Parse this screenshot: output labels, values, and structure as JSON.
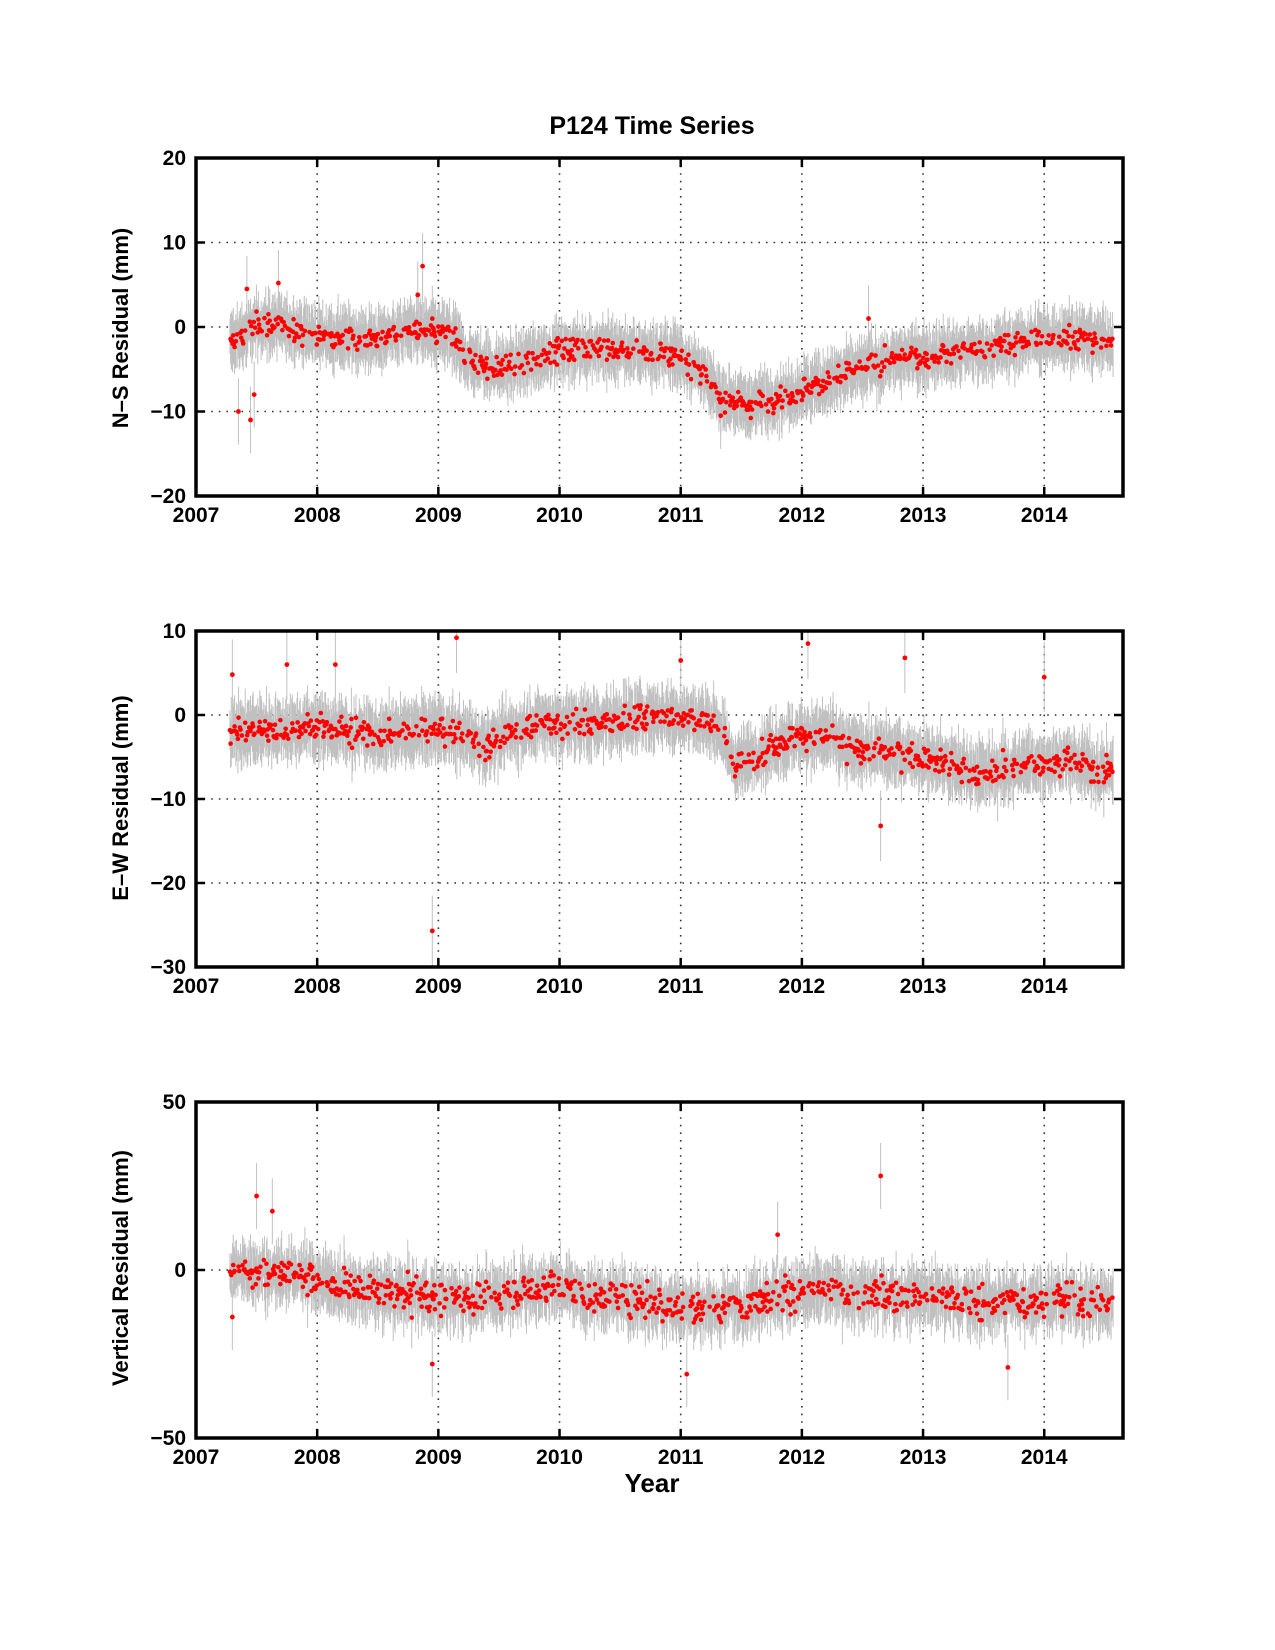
{
  "chart_data": [
    {
      "type": "scatter",
      "title": "P124 Time Series",
      "ylabel": "N–S Residual (mm)",
      "xlabel": "",
      "xlim": [
        2007,
        2014.65
      ],
      "ylim": [
        -20,
        20
      ],
      "xticks": [
        2007,
        2008,
        2009,
        2010,
        2011,
        2012,
        2013,
        2014
      ],
      "xtick_labels": [
        "2007",
        "2008",
        "2009",
        "2010",
        "2011",
        "2012",
        "2013",
        "2014"
      ],
      "yticks": [
        -20,
        -10,
        0,
        10,
        20
      ],
      "ytick_labels": [
        "−20",
        "−10",
        "0",
        "10",
        "20"
      ],
      "grid": "dotted",
      "data_start": 2007.28,
      "data_end": 2014.57,
      "markers": "red dots with gray error bars",
      "colors": {
        "points": "#ff0000",
        "error_bars": "#c0c0c0"
      },
      "error_bar_mm": 2.8,
      "noise_mm": 1.3,
      "trend": [
        [
          2007.28,
          -2
        ],
        [
          2007.55,
          0.5
        ],
        [
          2007.75,
          0
        ],
        [
          2008.0,
          -1
        ],
        [
          2008.5,
          -1.5
        ],
        [
          2008.75,
          -0.3
        ],
        [
          2009.1,
          -1
        ],
        [
          2009.25,
          -4
        ],
        [
          2009.5,
          -5
        ],
        [
          2009.75,
          -3.8
        ],
        [
          2010.0,
          -2.8
        ],
        [
          2010.3,
          -2.5
        ],
        [
          2010.6,
          -3
        ],
        [
          2010.95,
          -3.2
        ],
        [
          2011.15,
          -5
        ],
        [
          2011.3,
          -8
        ],
        [
          2011.5,
          -9.3
        ],
        [
          2011.8,
          -8.5
        ],
        [
          2012.0,
          -7.5
        ],
        [
          2012.3,
          -6
        ],
        [
          2012.6,
          -4.5
        ],
        [
          2012.9,
          -3.5
        ],
        [
          2013.3,
          -3
        ],
        [
          2013.6,
          -2.5
        ],
        [
          2013.9,
          -1.5
        ],
        [
          2014.2,
          -1
        ],
        [
          2014.4,
          -1.5
        ],
        [
          2014.57,
          -1.8
        ]
      ],
      "outliers": [
        [
          2007.35,
          -10
        ],
        [
          2007.45,
          -11
        ],
        [
          2007.48,
          -8
        ],
        [
          2007.42,
          4.5
        ],
        [
          2007.68,
          5.2
        ],
        [
          2008.87,
          7.2
        ],
        [
          2008.83,
          3.8
        ],
        [
          2012.55,
          1
        ],
        [
          2011.33,
          -10.5
        ]
      ]
    },
    {
      "type": "scatter",
      "title": "",
      "ylabel": "E–W Residual (mm)",
      "xlabel": "",
      "xlim": [
        2007,
        2014.65
      ],
      "ylim": [
        -30,
        10
      ],
      "xticks": [
        2007,
        2008,
        2009,
        2010,
        2011,
        2012,
        2013,
        2014
      ],
      "xtick_labels": [
        "2007",
        "2008",
        "2009",
        "2010",
        "2011",
        "2012",
        "2013",
        "2014"
      ],
      "yticks": [
        -30,
        -20,
        -10,
        0,
        10
      ],
      "ytick_labels": [
        "−30",
        "−20",
        "−10",
        "0",
        "10"
      ],
      "grid": "dotted",
      "data_start": 2007.28,
      "data_end": 2014.57,
      "markers": "red dots with gray error bars",
      "colors": {
        "points": "#ff0000",
        "error_bars": "#c0c0c0"
      },
      "error_bar_mm": 3,
      "noise_mm": 1.5,
      "trend": [
        [
          2007.28,
          -2
        ],
        [
          2008.0,
          -1.5
        ],
        [
          2008.5,
          -2.5
        ],
        [
          2009.0,
          -1.5
        ],
        [
          2009.4,
          -3.5
        ],
        [
          2009.8,
          -1
        ],
        [
          2010.3,
          -1
        ],
        [
          2010.8,
          0
        ],
        [
          2011.1,
          -0.5
        ],
        [
          2011.3,
          -1
        ],
        [
          2011.45,
          -6
        ],
        [
          2011.7,
          -4
        ],
        [
          2012.0,
          -2.5
        ],
        [
          2012.25,
          -2.5
        ],
        [
          2012.35,
          -4
        ],
        [
          2012.8,
          -4.5
        ],
        [
          2013.2,
          -6
        ],
        [
          2013.5,
          -7
        ],
        [
          2013.8,
          -6
        ],
        [
          2014.2,
          -5.5
        ],
        [
          2014.57,
          -7
        ]
      ],
      "outliers": [
        [
          2008.95,
          -25.7
        ],
        [
          2009.15,
          9.2
        ],
        [
          2012.05,
          8.5
        ],
        [
          2012.65,
          -13.2
        ],
        [
          2012.85,
          6.8
        ],
        [
          2014.0,
          4.5
        ],
        [
          2011.0,
          6.5
        ],
        [
          2007.3,
          4.8
        ],
        [
          2007.75,
          6
        ],
        [
          2008.15,
          6
        ]
      ]
    },
    {
      "type": "scatter",
      "title": "",
      "ylabel": "Vertical Residual (mm)",
      "xlabel": "Year",
      "xlim": [
        2007,
        2014.65
      ],
      "ylim": [
        -50,
        50
      ],
      "xticks": [
        2007,
        2008,
        2009,
        2010,
        2011,
        2012,
        2013,
        2014
      ],
      "xtick_labels": [
        "2007",
        "2008",
        "2009",
        "2010",
        "2011",
        "2012",
        "2013",
        "2014"
      ],
      "yticks": [
        -50,
        0,
        50
      ],
      "ytick_labels": [
        "−50",
        "0",
        "50"
      ],
      "grid": "dotted",
      "data_start": 2007.28,
      "data_end": 2014.57,
      "markers": "red dots with gray error bars",
      "colors": {
        "points": "#ff0000",
        "error_bars": "#c0c0c0"
      },
      "error_bar_mm": 7,
      "noise_mm": 4.5,
      "trend": [
        [
          2007.28,
          0
        ],
        [
          2007.9,
          -1.5
        ],
        [
          2008.3,
          -6
        ],
        [
          2008.8,
          -8
        ],
        [
          2009.3,
          -9
        ],
        [
          2009.7,
          -6
        ],
        [
          2010.0,
          -5
        ],
        [
          2010.25,
          -8
        ],
        [
          2010.7,
          -9
        ],
        [
          2011.0,
          -11
        ],
        [
          2011.3,
          -12
        ],
        [
          2011.7,
          -8
        ],
        [
          2012.2,
          -6
        ],
        [
          2012.7,
          -8
        ],
        [
          2013.0,
          -7
        ],
        [
          2013.4,
          -10
        ],
        [
          2013.9,
          -9
        ],
        [
          2014.3,
          -9
        ],
        [
          2014.57,
          -10
        ]
      ],
      "outliers": [
        [
          2007.5,
          22
        ],
        [
          2007.63,
          17.5
        ],
        [
          2012.65,
          28
        ],
        [
          2011.05,
          -31
        ],
        [
          2008.95,
          -28
        ],
        [
          2013.7,
          -29
        ],
        [
          2007.3,
          -14
        ],
        [
          2011.8,
          10.5
        ]
      ]
    }
  ]
}
